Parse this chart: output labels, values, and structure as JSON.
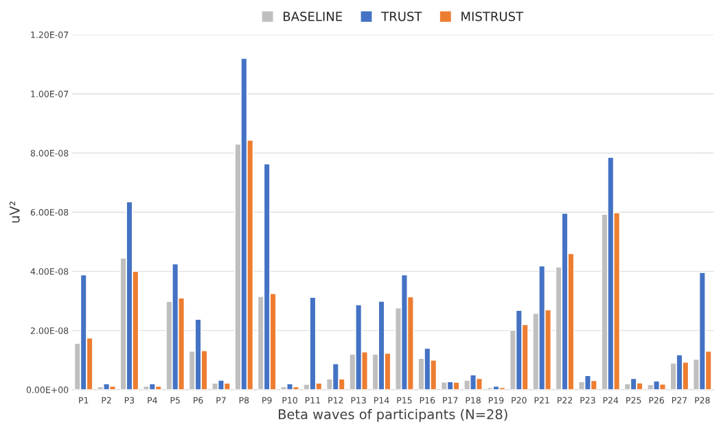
{
  "chart_data": {
    "type": "bar",
    "xlabel": "Beta waves of participants (N=28)",
    "ylabel": "uV²",
    "categories": [
      "P1",
      "P2",
      "P3",
      "P4",
      "P5",
      "P6",
      "P7",
      "P8",
      "P9",
      "P10",
      "P11",
      "P12",
      "P13",
      "P14",
      "P15",
      "P16",
      "P17",
      "P18",
      "P19",
      "P20",
      "P21",
      "P22",
      "P23",
      "P24",
      "P25",
      "P26",
      "P27",
      "P28"
    ],
    "series": [
      {
        "name": "BASELINE",
        "color": "#bfbfbf",
        "values": [
          1.57e-08,
          1e-09,
          4.45e-08,
          1.2e-09,
          2.98e-08,
          1.3e-08,
          2.2e-09,
          8.3e-08,
          3.15e-08,
          1e-09,
          1.8e-09,
          3.6e-09,
          1.2e-08,
          1.2e-08,
          2.76e-08,
          1.06e-08,
          2.6e-09,
          3.2e-09,
          7e-10,
          2.01e-08,
          2.58e-08,
          4.15e-08,
          2.7e-09,
          5.93e-08,
          2e-09,
          1.7e-09,
          9e-09,
          1.03e-08
        ]
      },
      {
        "name": "TRUST",
        "color": "#4472c4",
        "values": [
          3.88e-08,
          2e-09,
          6.35e-08,
          2e-09,
          4.25e-08,
          2.38e-08,
          3.2e-09,
          1.12e-07,
          7.63e-08,
          2e-09,
          3.12e-08,
          8.8e-09,
          2.87e-08,
          2.99e-08,
          3.88e-08,
          1.4e-08,
          2.7e-09,
          5e-09,
          1.2e-09,
          2.68e-08,
          4.18e-08,
          5.96e-08,
          4.8e-09,
          7.85e-08,
          3.8e-09,
          2.9e-09,
          1.18e-08,
          3.96e-08
        ]
      },
      {
        "name": "MISTRUST",
        "color": "#ed7d31",
        "values": [
          1.75e-08,
          1.2e-09,
          4e-08,
          1.2e-09,
          3.1e-08,
          1.32e-08,
          2.2e-09,
          8.43e-08,
          3.25e-08,
          1e-09,
          2.2e-09,
          3.6e-09,
          1.28e-08,
          1.23e-08,
          3.14e-08,
          1e-08,
          2.5e-09,
          3.8e-09,
          7e-10,
          2.2e-08,
          2.7e-08,
          4.6e-08,
          3.1e-09,
          5.98e-08,
          2.3e-09,
          1.9e-09,
          9.3e-09,
          1.3e-08
        ]
      }
    ],
    "ylim": [
      0,
      1.2e-07
    ],
    "yticks": [
      {
        "value": 0,
        "label": "0.00E+00"
      },
      {
        "value": 2e-08,
        "label": "2.00E-08"
      },
      {
        "value": 4e-08,
        "label": "4.00E-08"
      },
      {
        "value": 6e-08,
        "label": "6.00E-08"
      },
      {
        "value": 8e-08,
        "label": "8.00E-08"
      },
      {
        "value": 1e-07,
        "label": "1.00E-07"
      },
      {
        "value": 1.2e-07,
        "label": "1.20E-07"
      }
    ],
    "grid": "y",
    "legend": "top"
  }
}
